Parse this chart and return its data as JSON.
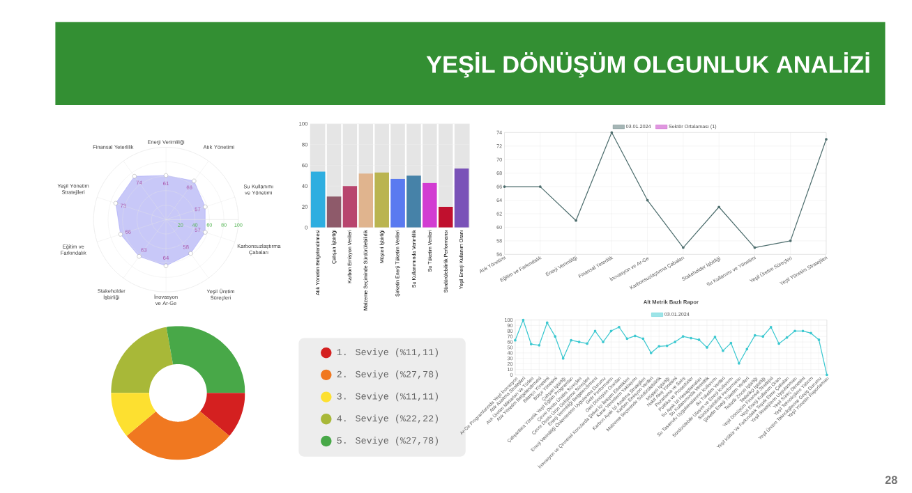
{
  "chart_data": [
    {
      "type": "other",
      "title": "YEŞİL DÖNÜŞÜM OLGUNLUK ANALİZİ"
    },
    {
      "type": "radar",
      "categories": [
        "Enerji Verimliliği",
        "Atık Yönetimi",
        "Su Kullanımı ve Yönetimi",
        "Karbonsuzlaştırma Çabaları",
        "Yeşil Üretim Süreçleri",
        "İnovasyon ve Ar-Ge",
        "Stakeholder İşbirliği",
        "Eğitim ve Farkındalık",
        "Yeşil Yönetim Stratejileri",
        "Finansal Yeterlilik"
      ],
      "series": [
        {
          "color": "#c8c8f8",
          "values": [
            61,
            66,
            57,
            57,
            58,
            64,
            63,
            66,
            73,
            74
          ]
        }
      ],
      "ylim": [
        0,
        100
      ],
      "yticks": [
        20,
        40,
        60,
        80,
        100
      ],
      "grid": true,
      "marker": "circle",
      "data_labels": true
    },
    {
      "type": "bar",
      "categories": [
        "Atık Yönetim Belgelendirmesi",
        "Çalışan İşbirliği",
        "Karbon Emisyon Verileri",
        "Malzeme Seçiminde Sürdürülebilirlik",
        "Müşteri İşbirliği",
        "Şirketin Enerji Tüketim Verileri",
        "Su Kullanımında Verimlilik",
        "Su Tüketim Verileri",
        "Sürdürülebilirlik Performansı",
        "Yeşil Enerji Kullanım Oranı"
      ],
      "values": [
        54,
        30,
        40,
        52,
        53,
        47,
        50,
        43,
        20,
        57
      ],
      "colors": [
        "#2eaee0",
        "#8e5a6a",
        "#b8456e",
        "#e0b48e",
        "#bab450",
        "#5a7af0",
        "#4682a8",
        "#d23cd2",
        "#c0102e",
        "#7a52b8"
      ],
      "ylim": [
        0,
        100
      ],
      "yticks": [
        0,
        20,
        40,
        60,
        80,
        100
      ],
      "grid": "y"
    },
    {
      "type": "line",
      "categories": [
        "Atık Yönetimi",
        "Eğitim ve Farkındalık",
        "Enerji Verimliliği",
        "Finansal Yeterlilik",
        "İnovasyon ve Ar-Ge",
        "Karbonsuzlaştırma Çabaları",
        "Stakeholder İşbirliği",
        "Su Kullanımı ve Yönetimi",
        "Yeşil Üretim Süreçleri",
        "Yeşil Yönetim Stratejileri"
      ],
      "series": [
        {
          "name": "03.01.2024",
          "color": "#4e6e6e",
          "values": [
            66,
            66,
            61,
            74,
            64,
            57,
            63,
            57,
            58,
            73
          ]
        },
        {
          "name": "Sektör Ortalaması (1)",
          "color": "#c030c0",
          "values": [
            null,
            null,
            null,
            null,
            null,
            null,
            null,
            null,
            null,
            null
          ]
        }
      ],
      "ylim": [
        56,
        74
      ],
      "yticks": [
        56,
        58,
        60,
        62,
        64,
        66,
        68,
        70,
        72,
        74
      ],
      "grid": true,
      "legend": "top",
      "marker": "circle"
    },
    {
      "type": "donut",
      "categories": [
        "1. Seviye (%11,11)",
        "2. Seviye (%27,78)",
        "3. Seviye (%11,11)",
        "4. Seviye (%22,22)",
        "5. Seviye (%27,78)"
      ],
      "values": [
        11.11,
        27.78,
        11.11,
        22.22,
        27.78
      ],
      "colors": [
        "#d42020",
        "#f07820",
        "#fde030",
        "#a8b838",
        "#48a848"
      ],
      "legend": "right"
    },
    {
      "type": "line",
      "title": "Alt Metrik Bazlı Rapor",
      "categories": [
        "Ar-Ge Programlarında Yeşil İnovasyon",
        "Atık Azaltma Stratejileri",
        "Atık Üretim Miktarları Ve Türleri",
        "Atık Yönetim Belgelendirmesi",
        "Bilanço Yönetimi",
        "Bütçe Yönetimi",
        "Çalışan İşbirliği",
        "Çalışanlara Yönelik Yeşil Eğitim Programları",
        "Çevre Dostu Üretim Süreçleri",
        "Çevre Dostu Ürün Geliştirme Süreçleri",
        "Enerji Verimliliği Belgelendirmesi",
        "Enerji Verimliliği Önlemlerinin Uygulanma Durumu",
        "Gelir Performansı",
        "Geri Dönüşüm Oranları",
        "İnovasyon ve Çevresel Konularda Şirket İçi İletişim Etkinlikleri",
        "Karar Verenlerin Yaklaşımı",
        "Karbon Ayak İzi Azaltma Stratejileri",
        "Karbon Emisyon Verileri",
        "Malzeme Seçiminde Sürdürülebilirlik",
        "Müşteri İşbirliği",
        "Nakit Akış Yönetimi",
        "Pazarlama ve Satış",
        "Politika ve Prosedürler",
        "Su Ayak İzi Hesaplamaları",
        "Su Kullanımında Verimlilik",
        "Su Tasarrufu Uygulamalarının Kullanımı",
        "Su Tüketim Verileri",
        "Sürdürülebilir Ulaşım ve Enerji Kullanımı",
        "Sürdürülebilirlik Performansı",
        "Şirketin Enerji Tüketim Verileri",
        "Tedarik Zinciri İşbirliği",
        "Tedarikçi İşbirliği",
        "Yeşil Dönüşüm Finansal Stratejisi",
        "Yeşil Enerji Kullanım Oranı",
        "Yeşil Kültür Ve Farkındalık Teşvik Etme Çabaları",
        "Yeşil Stratejilerin Uygulanması",
        "Yeşil Süreç Denetimi",
        "Yeşil Teknolojilere Yatırım",
        "Yeşil Üretim Teknolojilerine Geçiş Durumu",
        "Yeşil Yönetim Raporlaması"
      ],
      "series": [
        {
          "name": "03.01.2024",
          "color": "#3cc8d0",
          "values": [
            63,
            100,
            56,
            54,
            95,
            70,
            30,
            63,
            60,
            57,
            80,
            60,
            80,
            87,
            66,
            71,
            66,
            40,
            52,
            53,
            60,
            70,
            67,
            64,
            50,
            69,
            44,
            58,
            21,
            47,
            72,
            70,
            87,
            57,
            68,
            80,
            80,
            76,
            64,
            0
          ]
        }
      ],
      "ylim": [
        0,
        100
      ],
      "yticks": [
        0,
        10,
        20,
        30,
        40,
        50,
        60,
        70,
        80,
        90,
        100
      ],
      "grid": true,
      "legend": "top",
      "marker": "circle",
      "annotations": [
        "28"
      ]
    }
  ]
}
